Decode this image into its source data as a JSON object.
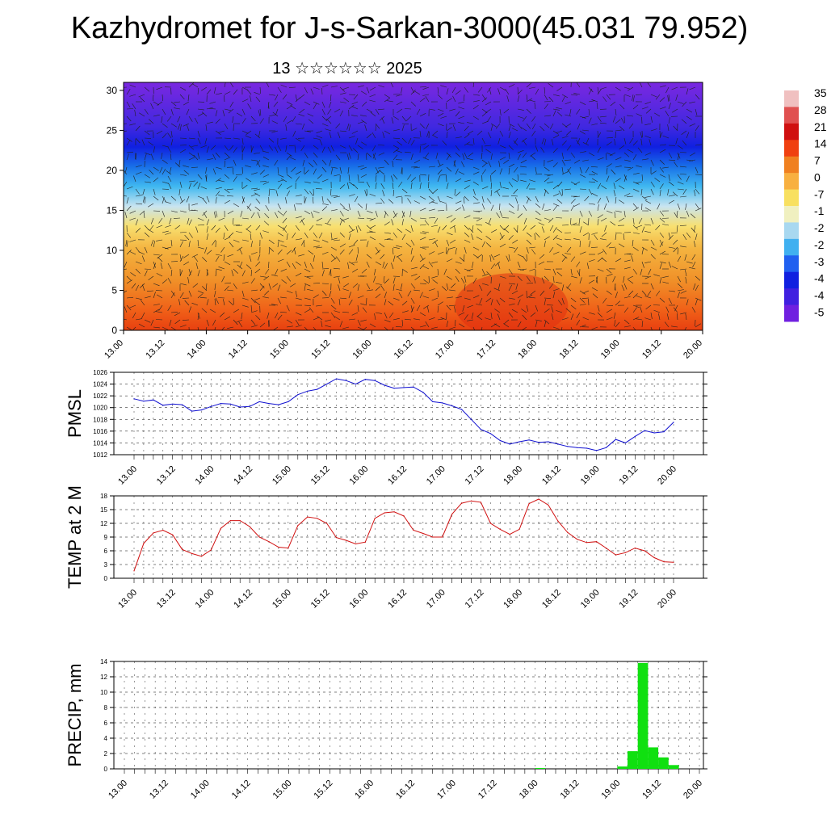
{
  "header": {
    "title": "Kazhydromet for J-s-Sarkan-3000(45.031 79.952)",
    "subtitle": "13 ☆☆☆☆☆☆ 2025"
  },
  "x_ticks": [
    "13.00",
    "13.12",
    "14.00",
    "14.12",
    "15.00",
    "15.12",
    "16.00",
    "16.12",
    "17.00",
    "17.12",
    "18.00",
    "18.12",
    "19.00",
    "19.12",
    "20.00"
  ],
  "chart_data": [
    {
      "type": "heatmap",
      "name": "vertical-temperature-wind-crosssection",
      "x_ticks": [
        "13.00",
        "13.12",
        "14.00",
        "14.12",
        "15.00",
        "15.12",
        "16.00",
        "16.12",
        "17.00",
        "17.12",
        "18.00",
        "18.12",
        "19.00",
        "19.12",
        "20.00"
      ],
      "y_ticks": [
        0,
        5,
        10,
        15,
        20,
        25,
        30
      ],
      "ylim": [
        0,
        31
      ],
      "colorbar_labels": [
        "35",
        "28",
        "21",
        "14",
        "7",
        "0",
        "-7",
        "-1",
        "-2",
        "-2",
        "-3",
        "-4",
        "-4",
        "-5"
      ],
      "colorbar_colors": [
        "#f0c0c0",
        "#e05050",
        "#d01010",
        "#f04010",
        "#f08020",
        "#f8b040",
        "#f8e060",
        "#f0f0c0",
        "#a8d8f0",
        "#40b0f0",
        "#2060f0",
        "#1020e0",
        "#4020e0",
        "#7020e0"
      ],
      "description_values": "temperature in levels, wind barbs overlay"
    },
    {
      "type": "line",
      "name": "PMSL",
      "ylabel": "PMSL",
      "ylim": [
        1012,
        1026
      ],
      "yticks": [
        1012,
        1014,
        1016,
        1018,
        1020,
        1022,
        1024,
        1026
      ],
      "color": "#1010d0",
      "x": [
        0,
        3,
        6,
        9,
        12,
        15,
        18,
        21,
        24,
        27,
        30,
        33,
        36,
        39,
        42,
        45,
        48,
        51,
        54,
        57,
        60,
        63,
        66,
        69,
        72,
        75,
        78,
        81,
        84,
        87,
        90,
        93,
        96,
        99,
        102,
        105,
        108,
        111,
        114,
        117,
        120,
        123,
        126,
        129,
        132,
        135,
        138,
        141,
        144,
        147,
        150,
        153,
        156,
        159,
        162,
        165,
        168
      ],
      "values": [
        1021.5,
        1021.1,
        1021.3,
        1020.4,
        1020.6,
        1020.5,
        1019.4,
        1019.6,
        1020.2,
        1020.7,
        1020.6,
        1020.1,
        1020.2,
        1021.0,
        1020.7,
        1020.5,
        1021.0,
        1022.2,
        1022.8,
        1023.1,
        1024.0,
        1024.9,
        1024.6,
        1024.0,
        1024.8,
        1024.6,
        1023.8,
        1023.3,
        1023.4,
        1023.5,
        1022.6,
        1021.0,
        1020.8,
        1020.3,
        1019.7,
        1018.0,
        1016.3,
        1015.6,
        1014.4,
        1013.8,
        1014.2,
        1014.5,
        1014.1,
        1014.2,
        1013.8,
        1013.4,
        1013.2,
        1013.1,
        1012.7,
        1013.2,
        1014.6,
        1014.0,
        1015.1,
        1016.1,
        1015.7,
        1015.9,
        1017.5
      ]
    },
    {
      "type": "line",
      "name": "TEMP at 2 M",
      "ylabel": "TEMP at 2 M",
      "ylim": [
        0,
        18
      ],
      "yticks": [
        0,
        3,
        6,
        9,
        12,
        15,
        18
      ],
      "color": "#d01010",
      "x": [
        0,
        3,
        6,
        9,
        12,
        15,
        18,
        21,
        24,
        27,
        30,
        33,
        36,
        39,
        42,
        45,
        48,
        51,
        54,
        57,
        60,
        63,
        66,
        69,
        72,
        75,
        78,
        81,
        84,
        87,
        90,
        93,
        96,
        99,
        102,
        105,
        108,
        111,
        114,
        117,
        120,
        123,
        126,
        129,
        132,
        135,
        138,
        141,
        144,
        147,
        150,
        153,
        156,
        159,
        162,
        165,
        168
      ],
      "values": [
        1.6,
        7.6,
        9.9,
        10.5,
        9.5,
        6.3,
        5.4,
        4.8,
        6.2,
        10.9,
        12.6,
        12.6,
        11.3,
        9.0,
        8.0,
        6.8,
        6.6,
        11.5,
        13.4,
        13.1,
        12.0,
        8.9,
        8.3,
        7.5,
        7.9,
        13.1,
        14.3,
        14.5,
        13.6,
        10.5,
        9.8,
        9.0,
        9.0,
        14.0,
        16.4,
        16.9,
        16.6,
        12.0,
        10.7,
        9.6,
        10.7,
        16.3,
        17.3,
        16.0,
        12.5,
        10.0,
        8.5,
        7.8,
        8.0,
        6.6,
        5.1,
        5.6,
        6.6,
        6.0,
        4.5,
        3.6,
        3.5
      ]
    },
    {
      "type": "bar",
      "name": "PRECIP, mm",
      "ylabel": "PRECIP, mm",
      "ylim": [
        0,
        14
      ],
      "yticks": [
        0,
        2,
        4,
        6,
        8,
        10,
        12,
        14
      ],
      "color": "#10e010",
      "x": [
        120,
        144,
        147,
        150,
        153,
        156,
        159
      ],
      "values": [
        0.1,
        0.3,
        2.3,
        13.8,
        2.8,
        1.5,
        0.5
      ]
    }
  ]
}
